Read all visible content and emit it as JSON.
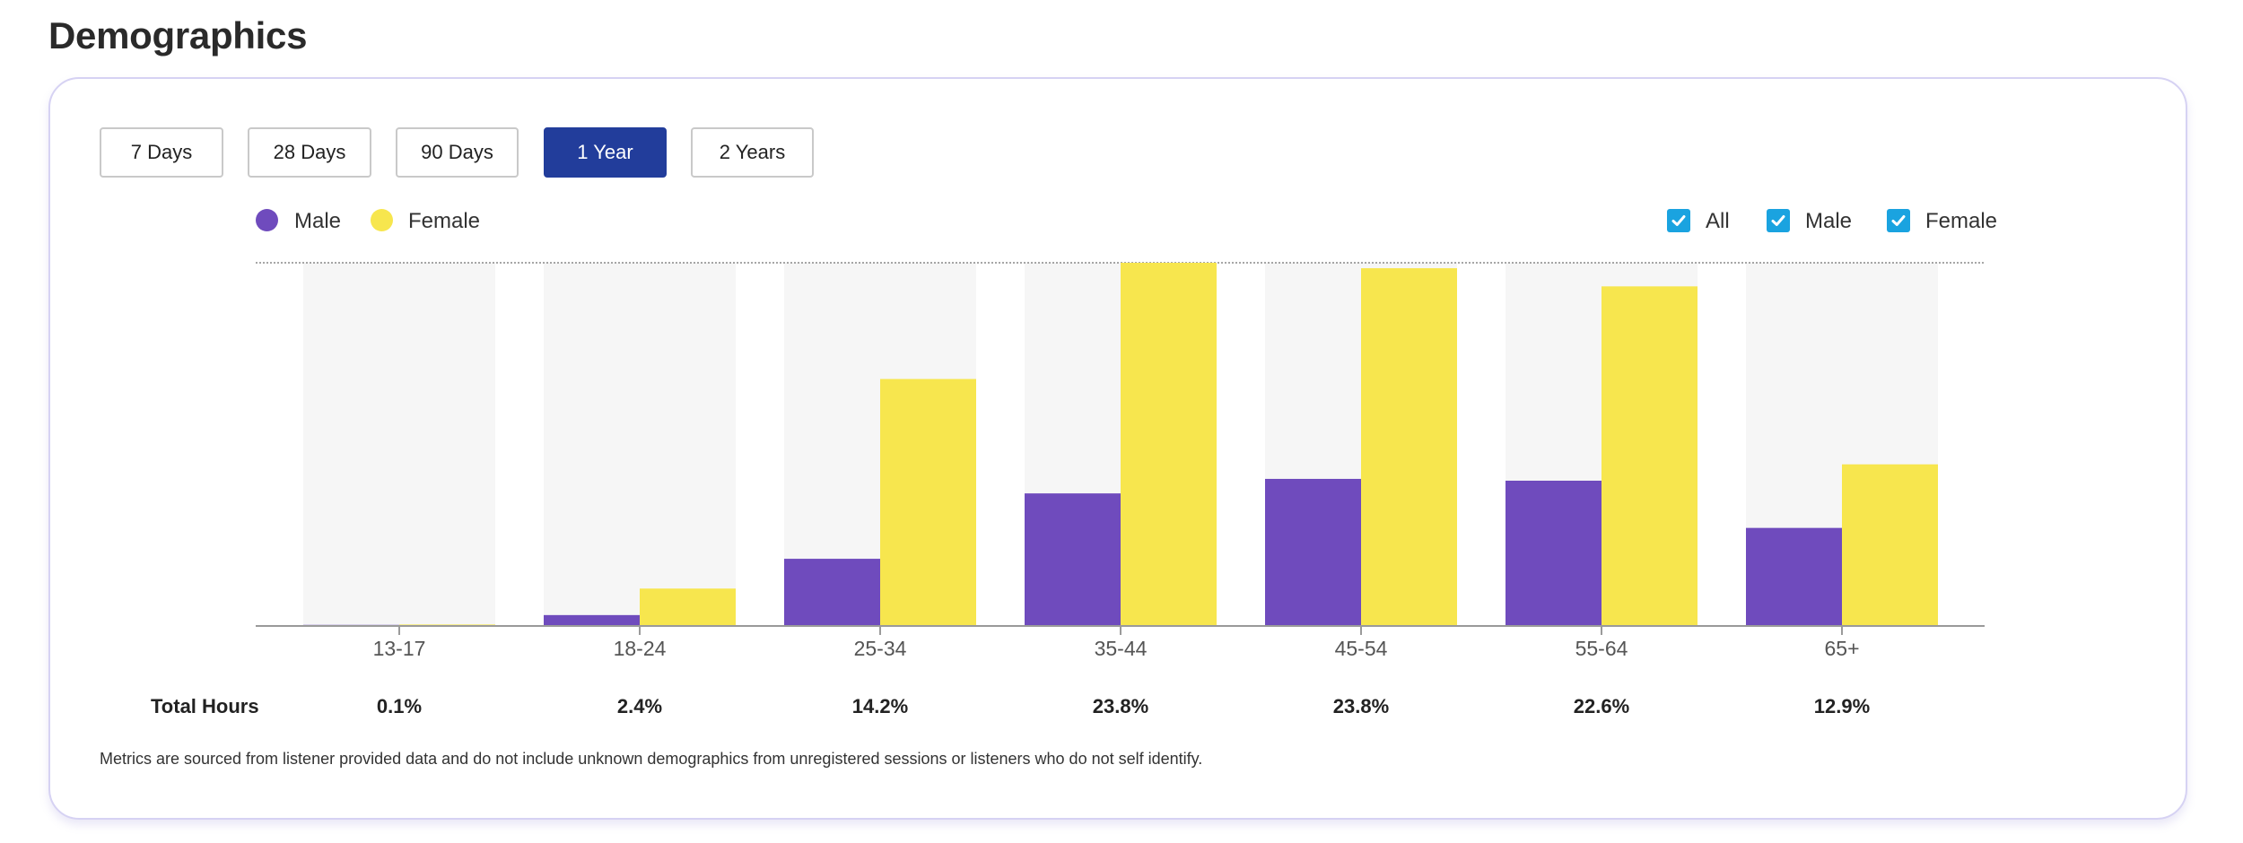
{
  "page": {
    "title": "Demographics"
  },
  "range_buttons": [
    {
      "label": "7 Days",
      "active": false
    },
    {
      "label": "28 Days",
      "active": false
    },
    {
      "label": "90 Days",
      "active": false
    },
    {
      "label": "1 Year",
      "active": true
    },
    {
      "label": "2 Years",
      "active": false
    }
  ],
  "legend": [
    {
      "label": "Male",
      "color": "#6f4bbd"
    },
    {
      "label": "Female",
      "color": "#f7e64e"
    }
  ],
  "filters": [
    {
      "label": "All",
      "checked": true
    },
    {
      "label": "Male",
      "checked": true
    },
    {
      "label": "Female",
      "checked": true
    }
  ],
  "chart_data": {
    "type": "bar",
    "title": "",
    "xlabel": "",
    "ylabel": "",
    "ylim": [
      0,
      100
    ],
    "categories": [
      "13-17",
      "18-24",
      "25-34",
      "35-44",
      "45-54",
      "55-64",
      "65+"
    ],
    "series": [
      {
        "name": "Male",
        "color": "#6f4bbd",
        "values": [
          0.3,
          3,
          18.5,
          36.5,
          40.5,
          40,
          27
        ]
      },
      {
        "name": "Female",
        "color": "#f7e64e",
        "values": [
          0.4,
          10.3,
          68,
          100,
          98.5,
          93.5,
          44.5
        ]
      }
    ],
    "grid": false,
    "legend": "top-left",
    "totals_label": "Total Hours",
    "totals": [
      "0.1%",
      "2.4%",
      "14.2%",
      "23.8%",
      "23.8%",
      "22.6%",
      "12.9%"
    ]
  },
  "footnote": "Metrics are sourced from listener provided data and do not include unknown demographics from unregistered sessions or listeners who do not self identify."
}
